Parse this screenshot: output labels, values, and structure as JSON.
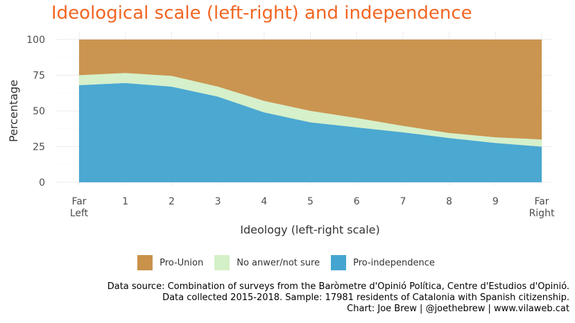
{
  "title": "Ideological scale (left-right) and independence",
  "colors": {
    "title": "#f26522",
    "pro_union": "#c8924a",
    "no_answer": "#d4f0c8",
    "pro_independence": "#45a5d0",
    "grid": "#ebebeb"
  },
  "chart_data": {
    "type": "area",
    "stacked": true,
    "title": "Ideological scale (left-right) and independence",
    "xlabel": "Ideology (left-right scale)",
    "ylabel": "Percentage",
    "categories": [
      "Far Left",
      "1",
      "2",
      "3",
      "4",
      "5",
      "6",
      "7",
      "8",
      "9",
      "Far Right"
    ],
    "yticks": [
      0,
      25,
      50,
      75,
      100
    ],
    "ylim": [
      0,
      100
    ],
    "grid": true,
    "legend_position": "bottom",
    "series": [
      {
        "name": "Pro-independence",
        "color": "#45a5d0",
        "values": [
          68,
          69.5,
          67,
          60,
          49,
          42,
          38.5,
          35,
          31,
          27.5,
          25
        ]
      },
      {
        "name": "No anwer/not sure",
        "color": "#d4f0c8",
        "values": [
          7,
          7,
          7.5,
          7,
          8,
          8,
          6.5,
          4.5,
          3.5,
          4,
          5
        ]
      },
      {
        "name": "Pro-Union",
        "color": "#c8924a",
        "values": [
          25,
          23.5,
          25.5,
          33,
          43,
          50,
          55,
          60.5,
          65.5,
          68.5,
          70
        ]
      }
    ]
  },
  "legend": {
    "items": [
      {
        "label": "Pro-Union",
        "color": "#c8924a"
      },
      {
        "label": "No anwer/not sure",
        "color": "#d4f0c8"
      },
      {
        "label": "Pro-independence",
        "color": "#45a5d0"
      }
    ]
  },
  "caption": {
    "line1": "Data source: Combination of surveys from the Baròmetre d'Opinió Política, Centre d'Estudios d'Opinió.",
    "line2": "Data collected 2015-2018. Sample: 17981 residents of Catalonia with Spanish citizenship.",
    "line3": "Chart: Joe Brew | @joethebrew | www.vilaweb.cat"
  }
}
